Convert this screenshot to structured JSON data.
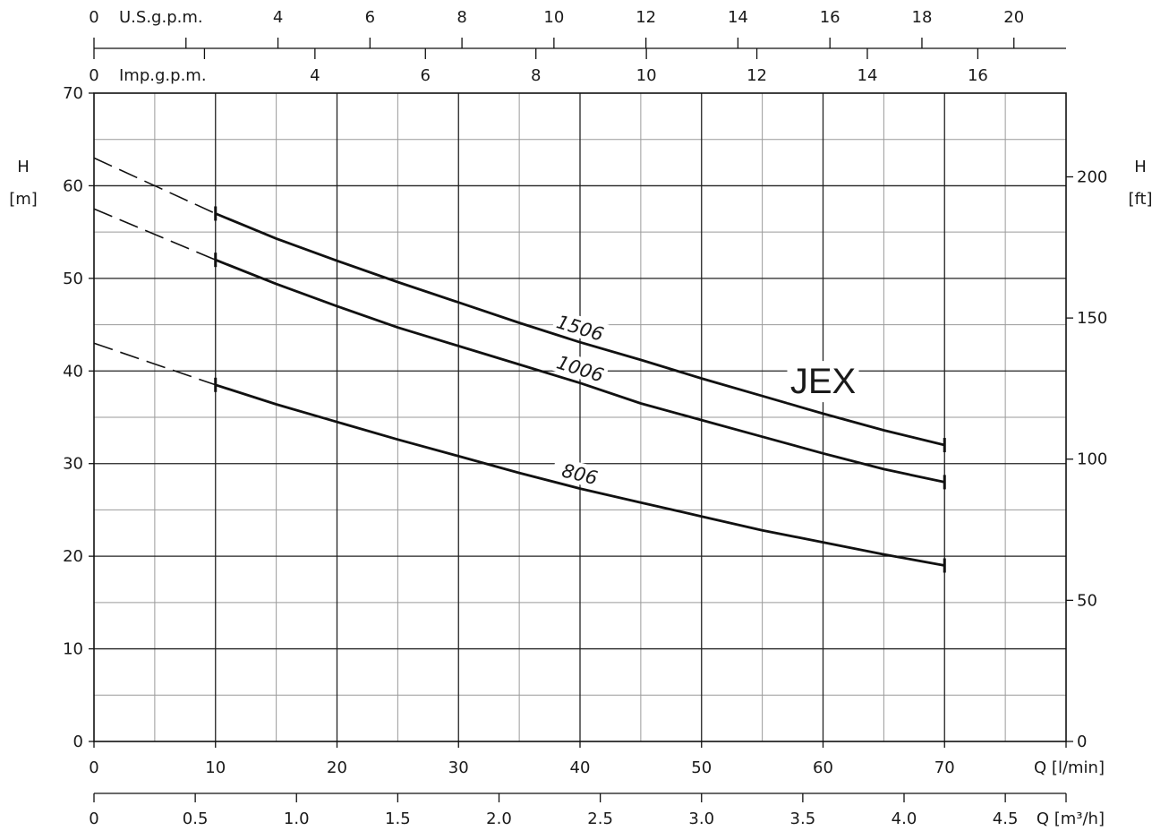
{
  "chart_data": {
    "type": "line",
    "title": "JEX",
    "x": [
      0,
      5,
      10,
      15,
      20,
      25,
      30,
      35,
      40,
      45,
      50,
      55,
      60,
      65,
      70
    ],
    "x_unit": "Q [l/min]",
    "y_unit_left": "H [m]",
    "y_unit_right": "H [ft]",
    "xlim": [
      0,
      80
    ],
    "ylim": [
      0,
      70
    ],
    "grid": true,
    "x_ticks": [
      "0",
      "10",
      "20",
      "30",
      "40",
      "50",
      "60",
      "70"
    ],
    "y_ticks_left": [
      "0",
      "10",
      "20",
      "30",
      "40",
      "50",
      "60",
      "70"
    ],
    "y_ticks_right": [
      "0",
      "50",
      "100",
      "150",
      "200"
    ],
    "axis_usgpm": {
      "label": "U.S.g.p.m.",
      "ticks": [
        "0",
        "4",
        "6",
        "8",
        "10",
        "12",
        "14",
        "16",
        "18",
        "20"
      ]
    },
    "axis_impgpm": {
      "label": "Imp.g.p.m.",
      "ticks": [
        "0",
        "4",
        "6",
        "8",
        "10",
        "12",
        "14",
        "16"
      ]
    },
    "axis_m3h": {
      "label": "Q [m³/h]",
      "ticks": [
        "0",
        "0.5",
        "1.0",
        "1.5",
        "2.0",
        "2.5",
        "3.0",
        "3.5",
        "4.0",
        "4.5"
      ]
    },
    "series": [
      {
        "name": "1506",
        "dashed_from_zero": 63,
        "values": [
          63,
          60,
          57,
          54.3,
          51.9,
          49.6,
          47.4,
          45.2,
          43.1,
          41.2,
          39.2,
          37.3,
          35.4,
          33.6,
          32
        ]
      },
      {
        "name": "1006",
        "dashed_from_zero": 57.5,
        "values": [
          57.5,
          54.8,
          52,
          49.4,
          47,
          44.7,
          42.7,
          40.7,
          38.7,
          36.5,
          34.7,
          32.9,
          31.1,
          29.4,
          28
        ]
      },
      {
        "name": "806",
        "dashed_from_zero": 43,
        "values": [
          43,
          40.8,
          38.5,
          36.4,
          34.5,
          32.6,
          30.8,
          29,
          27.3,
          25.8,
          24.3,
          22.8,
          21.5,
          20.2,
          19
        ]
      }
    ],
    "label_positions": {
      "1506": 40,
      "1006": 40,
      "806": 40
    }
  }
}
